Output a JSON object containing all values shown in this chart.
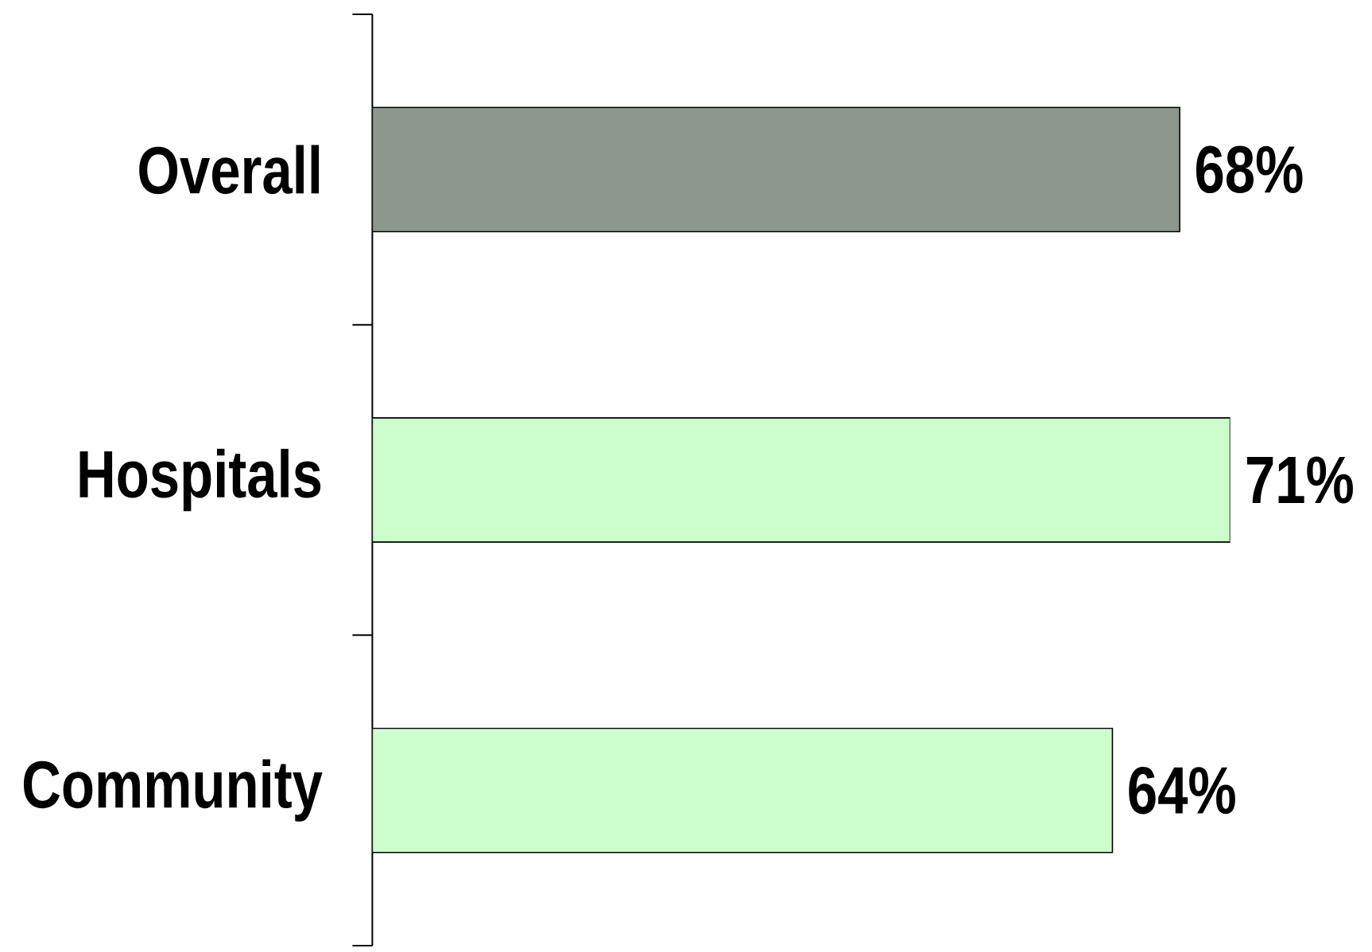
{
  "chart_data": {
    "type": "bar",
    "orientation": "horizontal",
    "categories": [
      "Overall",
      "Hospitals",
      "Community"
    ],
    "values": [
      68,
      71,
      64
    ],
    "colors": [
      "#8e978e",
      "#ccffcc",
      "#ccffcc"
    ],
    "value_labels": [
      "68%",
      "71%",
      "64%"
    ],
    "xlim": [
      20,
      71
    ],
    "tick_labels": "y"
  }
}
